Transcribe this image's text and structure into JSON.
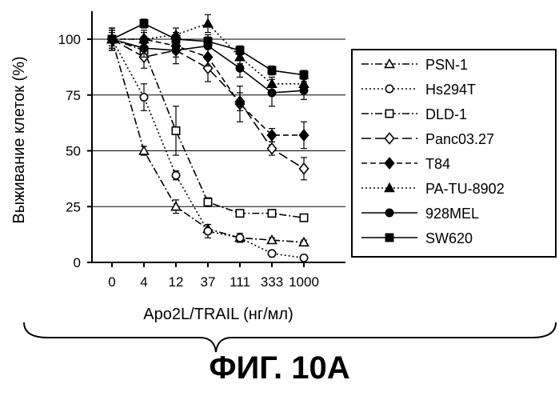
{
  "figure_caption": "ФИГ. 10А",
  "chart_data": {
    "type": "line",
    "title": "",
    "xlabel": "Apo2L/TRAIL (нг/мл)",
    "ylabel": "Выживание клеток (%)",
    "categories": [
      "0",
      "4",
      "12",
      "37",
      "111",
      "333",
      "1000"
    ],
    "ylim": [
      0,
      110
    ],
    "yticks": [
      0,
      25,
      50,
      75,
      100
    ],
    "grid": "horizontal",
    "legend_position": "right",
    "series": [
      {
        "name": "PSN-1",
        "marker": "triangle-open",
        "dash": "dash-dot",
        "values": [
          100,
          50,
          25,
          15,
          11,
          10,
          9
        ],
        "errors": [
          5,
          2,
          3,
          2,
          1,
          1,
          1
        ]
      },
      {
        "name": "Hs294T",
        "marker": "circle-open",
        "dash": "dotted",
        "values": [
          100,
          74,
          39,
          14,
          11,
          4,
          2
        ],
        "errors": [
          5,
          6,
          2,
          3,
          2,
          1,
          1
        ]
      },
      {
        "name": "DLD-1",
        "marker": "square-open",
        "dash": "dash-dot",
        "values": [
          100,
          95,
          59,
          27,
          22,
          22,
          20
        ],
        "errors": [
          5,
          3,
          11,
          2,
          1,
          1,
          1
        ]
      },
      {
        "name": "Panc03.27",
        "marker": "diamond-open",
        "dash": "long-dash",
        "values": [
          100,
          92,
          95,
          87,
          72,
          51,
          42
        ],
        "errors": [
          4,
          5,
          6,
          6,
          4,
          3,
          5
        ]
      },
      {
        "name": "T84",
        "marker": "diamond-filled",
        "dash": "dashed",
        "values": [
          100,
          100,
          97,
          92,
          71,
          57,
          57
        ],
        "errors": [
          3,
          3,
          3,
          4,
          8,
          3,
          6
        ]
      },
      {
        "name": "PA-TU-8902",
        "marker": "triangle-filled",
        "dash": "dotted",
        "values": [
          100,
          100,
          102,
          107,
          92,
          80,
          80
        ],
        "errors": [
          4,
          4,
          3,
          4,
          3,
          3,
          4
        ]
      },
      {
        "name": "928MEL",
        "marker": "circle-filled",
        "dash": "solid",
        "values": [
          100,
          96,
          95,
          97,
          87,
          76,
          77
        ],
        "errors": [
          4,
          4,
          3,
          4,
          4,
          6,
          4
        ]
      },
      {
        "name": "SW620",
        "marker": "square-filled",
        "dash": "solid",
        "values": [
          100,
          107,
          100,
          99,
          95,
          86,
          84
        ],
        "errors": [
          5,
          2,
          3,
          3,
          2,
          2,
          2
        ]
      }
    ]
  }
}
